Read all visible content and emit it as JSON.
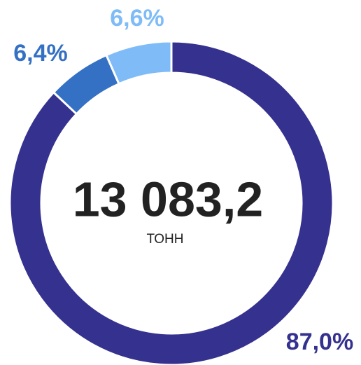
{
  "chart_data": {
    "type": "donut",
    "center_text": "13 083,2",
    "center_label": "ТОНН",
    "categories": [
      null,
      null,
      null
    ],
    "values": [
      87.0,
      6.4,
      6.6
    ],
    "value_labels": [
      "87,0%",
      "6,4%",
      "6,6%"
    ],
    "colors": [
      "#35318f",
      "#3470c4",
      "#7fbcf7"
    ]
  }
}
